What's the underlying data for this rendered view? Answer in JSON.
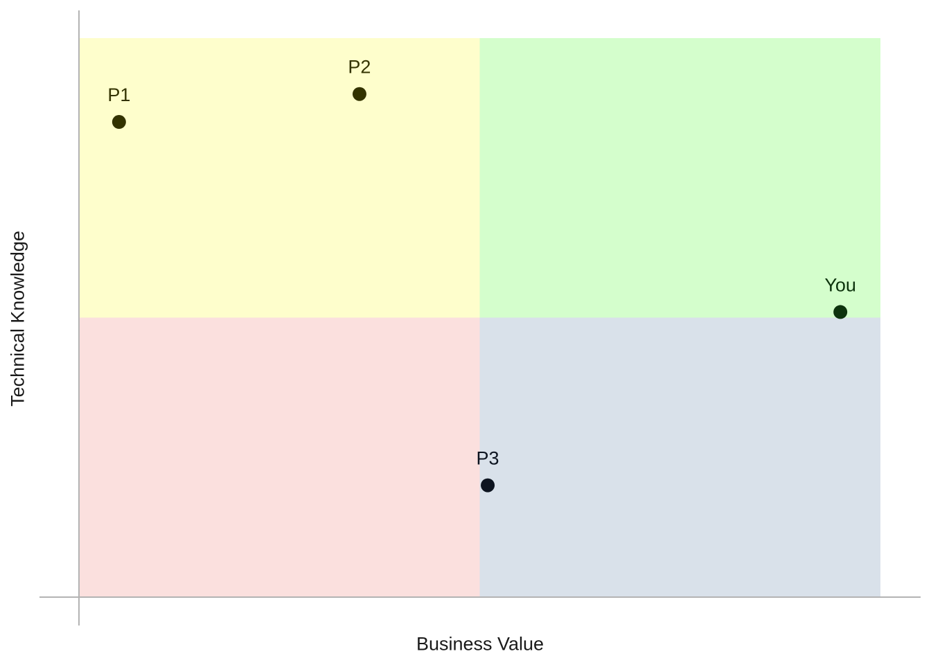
{
  "chart_data": {
    "type": "scatter",
    "title": "",
    "xlabel": "Business Value",
    "ylabel": "Technical Knowledge",
    "xlim": [
      0,
      10
    ],
    "ylim": [
      0,
      10
    ],
    "grid": false,
    "quadrants": [
      {
        "name": "top-left",
        "x": [
          0,
          5
        ],
        "y": [
          5,
          10
        ],
        "color": "#fefecc"
      },
      {
        "name": "top-right",
        "x": [
          5,
          10
        ],
        "y": [
          5,
          10
        ],
        "color": "#d4fecc"
      },
      {
        "name": "bottom-left",
        "x": [
          0,
          5
        ],
        "y": [
          0,
          5
        ],
        "color": "#fbe0de"
      },
      {
        "name": "bottom-right",
        "x": [
          5,
          10
        ],
        "y": [
          0,
          5
        ],
        "color": "#d9e1ea"
      }
    ],
    "points": [
      {
        "label": "P1",
        "x": 0.5,
        "y": 8.5,
        "color": "#333300"
      },
      {
        "label": "P2",
        "x": 3.5,
        "y": 9.0,
        "color": "#333300"
      },
      {
        "label": "You",
        "x": 9.5,
        "y": 5.1,
        "color": "#0d330d"
      },
      {
        "label": "P3",
        "x": 5.1,
        "y": 2.0,
        "color": "#0d1420"
      }
    ]
  }
}
